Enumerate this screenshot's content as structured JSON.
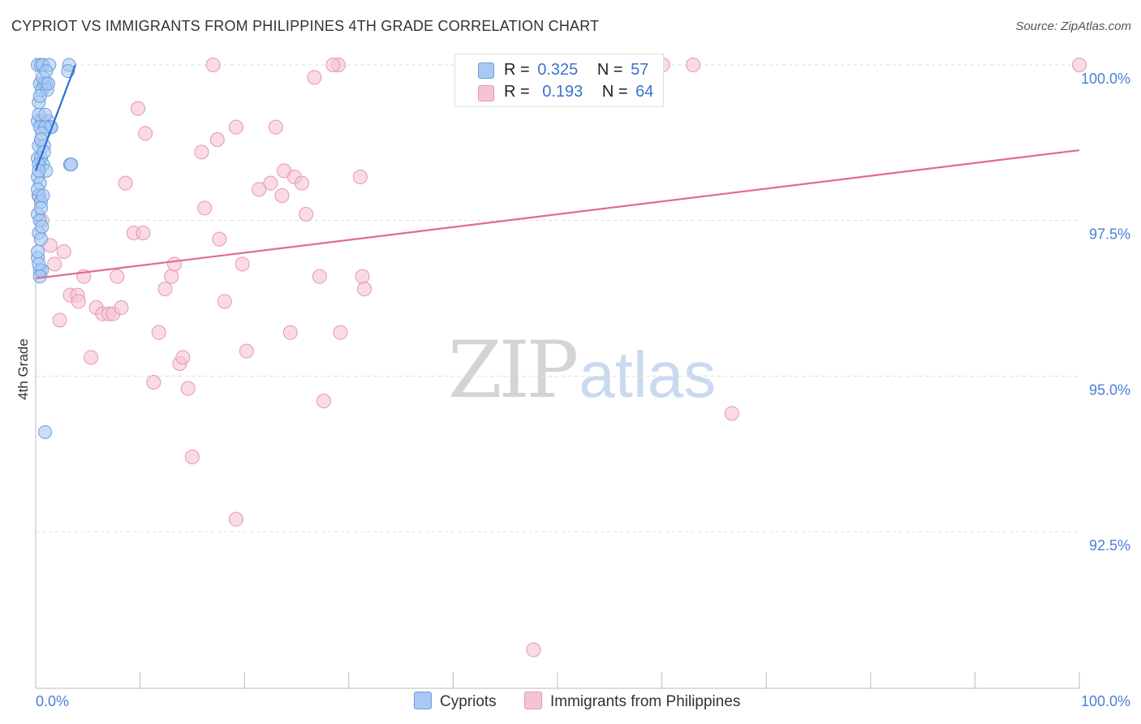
{
  "title": "CYPRIOT VS IMMIGRANTS FROM PHILIPPINES 4TH GRADE CORRELATION CHART",
  "source": "Source: ZipAtlas.com",
  "watermark": {
    "zip": "ZIP",
    "atlas": "atlas"
  },
  "legend": {
    "rows": [
      {
        "r_label": "R =",
        "r_value": "0.325",
        "n_label": "N =",
        "n_value": "57"
      },
      {
        "r_label": "R =",
        "r_value": "0.193",
        "n_label": "N =",
        "n_value": "64"
      }
    ]
  },
  "bottom_legend": {
    "cypriots": "Cypriots",
    "philippines": "Immigrants from Philippines"
  },
  "colors": {
    "cypriots_fill": "#a9c8f2",
    "cypriots_stroke": "#6a9ee0",
    "cypriots_line": "#2f6fcf",
    "philippines_fill": "#f7c3d3",
    "philippines_stroke": "#e796b0",
    "philippines_line": "#e06a93",
    "tick_text": "#4a7fd6",
    "grid": "#dddddd"
  },
  "chart_data": {
    "type": "scatter",
    "title": "CYPRIOT VS IMMIGRANTS FROM PHILIPPINES 4TH GRADE CORRELATION CHART",
    "xlabel": "",
    "ylabel": "4th Grade",
    "xlim": [
      0,
      100
    ],
    "ylim": [
      90.2,
      100.2
    ],
    "x_tick_labels": [
      "0.0%",
      "100.0%"
    ],
    "y_ticks": [
      92.5,
      95.0,
      97.5,
      100.0
    ],
    "y_tick_labels": [
      "92.5%",
      "95.0%",
      "97.5%",
      "100.0%"
    ],
    "series": [
      {
        "name": "Cypriots",
        "r": 0.325,
        "n": 57,
        "trend": {
          "x": [
            0.0,
            3.8
          ],
          "y": [
            98.3,
            100.0
          ]
        },
        "points": [
          [
            0.2,
            100.0
          ],
          [
            0.5,
            100.0
          ],
          [
            0.7,
            100.0
          ],
          [
            1.3,
            100.0
          ],
          [
            3.2,
            100.0
          ],
          [
            3.1,
            99.9
          ],
          [
            0.4,
            99.7
          ],
          [
            0.8,
            99.7
          ],
          [
            1.0,
            99.7
          ],
          [
            0.6,
            99.6
          ],
          [
            1.1,
            99.6
          ],
          [
            0.3,
            99.4
          ],
          [
            0.2,
            99.1
          ],
          [
            0.6,
            99.1
          ],
          [
            1.2,
            99.1
          ],
          [
            0.4,
            99.0
          ],
          [
            1.4,
            99.0
          ],
          [
            1.5,
            99.0
          ],
          [
            0.9,
            99.0
          ],
          [
            0.3,
            98.7
          ],
          [
            0.8,
            98.7
          ],
          [
            0.2,
            98.5
          ],
          [
            0.5,
            98.5
          ],
          [
            0.7,
            98.4
          ],
          [
            0.3,
            98.4
          ],
          [
            3.3,
            98.4
          ],
          [
            3.4,
            98.4
          ],
          [
            1.0,
            98.3
          ],
          [
            0.2,
            98.2
          ],
          [
            0.4,
            98.1
          ],
          [
            0.3,
            97.9
          ],
          [
            0.5,
            97.8
          ],
          [
            0.2,
            97.6
          ],
          [
            0.4,
            97.5
          ],
          [
            0.3,
            97.3
          ],
          [
            0.5,
            97.2
          ],
          [
            0.2,
            96.9
          ],
          [
            0.4,
            96.7
          ],
          [
            0.6,
            96.7
          ],
          [
            0.9,
            94.1
          ],
          [
            0.3,
            99.2
          ],
          [
            0.6,
            98.9
          ],
          [
            0.2,
            98.0
          ],
          [
            0.5,
            97.7
          ],
          [
            0.8,
            98.6
          ],
          [
            0.4,
            99.5
          ],
          [
            0.7,
            99.8
          ],
          [
            1.0,
            99.9
          ],
          [
            0.3,
            96.8
          ],
          [
            0.6,
            97.4
          ],
          [
            0.2,
            97.0
          ],
          [
            0.9,
            99.2
          ],
          [
            0.5,
            98.8
          ],
          [
            0.4,
            96.6
          ],
          [
            1.2,
            99.7
          ],
          [
            0.3,
            98.3
          ],
          [
            0.7,
            97.9
          ]
        ]
      },
      {
        "name": "Immigrants from Philippines",
        "r": 0.193,
        "n": 64,
        "trend": {
          "x": [
            0.0,
            100.0
          ],
          "y": [
            96.57,
            98.63
          ]
        },
        "points": [
          [
            0.3,
            97.9
          ],
          [
            0.6,
            97.5
          ],
          [
            1.4,
            97.1
          ],
          [
            1.8,
            96.8
          ],
          [
            2.7,
            97.0
          ],
          [
            4.6,
            96.6
          ],
          [
            3.3,
            96.3
          ],
          [
            4.0,
            96.3
          ],
          [
            4.1,
            96.2
          ],
          [
            5.8,
            96.1
          ],
          [
            6.4,
            96.0
          ],
          [
            7.0,
            96.0
          ],
          [
            7.4,
            96.0
          ],
          [
            8.2,
            96.1
          ],
          [
            2.3,
            95.9
          ],
          [
            5.3,
            95.3
          ],
          [
            9.4,
            97.3
          ],
          [
            10.3,
            97.3
          ],
          [
            7.8,
            96.6
          ],
          [
            12.4,
            96.4
          ],
          [
            13.0,
            96.6
          ],
          [
            13.3,
            96.8
          ],
          [
            11.8,
            95.7
          ],
          [
            13.8,
            95.2
          ],
          [
            14.1,
            95.3
          ],
          [
            11.3,
            94.9
          ],
          [
            14.6,
            94.8
          ],
          [
            8.6,
            98.1
          ],
          [
            9.8,
            99.3
          ],
          [
            10.5,
            98.9
          ],
          [
            15.9,
            98.6
          ],
          [
            16.2,
            97.7
          ],
          [
            17.4,
            98.8
          ],
          [
            17.6,
            97.2
          ],
          [
            19.2,
            99.0
          ],
          [
            19.8,
            96.8
          ],
          [
            18.1,
            96.2
          ],
          [
            20.2,
            95.4
          ],
          [
            22.5,
            98.1
          ],
          [
            21.4,
            98.0
          ],
          [
            23.0,
            99.0
          ],
          [
            23.6,
            97.9
          ],
          [
            23.8,
            98.3
          ],
          [
            24.8,
            98.2
          ],
          [
            25.5,
            98.1
          ],
          [
            25.9,
            97.6
          ],
          [
            24.4,
            95.7
          ],
          [
            27.2,
            96.6
          ],
          [
            27.6,
            94.6
          ],
          [
            29.2,
            95.7
          ],
          [
            31.1,
            98.2
          ],
          [
            31.3,
            96.6
          ],
          [
            31.5,
            96.4
          ],
          [
            17.0,
            100.0
          ],
          [
            26.7,
            99.8
          ],
          [
            29.0,
            100.0
          ],
          [
            28.5,
            100.0
          ],
          [
            60.1,
            100.0
          ],
          [
            63.0,
            100.0
          ],
          [
            100.0,
            100.0
          ],
          [
            15.0,
            93.7
          ],
          [
            19.2,
            92.7
          ],
          [
            66.7,
            94.4
          ],
          [
            47.7,
            90.6
          ]
        ]
      }
    ]
  }
}
